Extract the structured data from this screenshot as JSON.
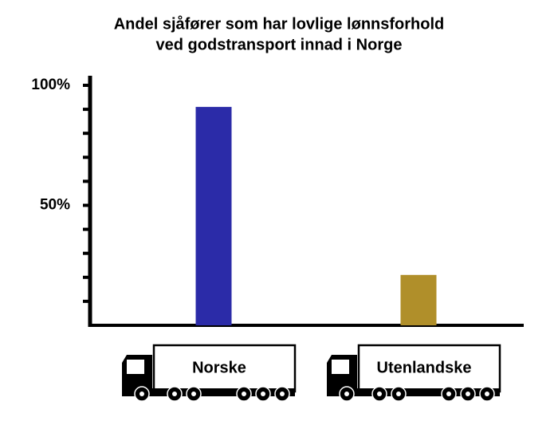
{
  "chart_data": {
    "type": "bar",
    "title": [
      "Andel sjåfører som har lovlige lønnsforhold",
      "ved godstransport innad i Norge"
    ],
    "categories": [
      "Norske",
      "Utenlandske"
    ],
    "values": [
      91,
      21
    ],
    "colors": [
      "#2b2ba8",
      "#b08f2a"
    ],
    "ylim": [
      0,
      100
    ],
    "yticks": [
      {
        "value": 50,
        "label": "50%"
      },
      {
        "value": 100,
        "label": "100%"
      }
    ],
    "minor_yticks": [
      10,
      20,
      30,
      40,
      60,
      70,
      80,
      90
    ]
  }
}
